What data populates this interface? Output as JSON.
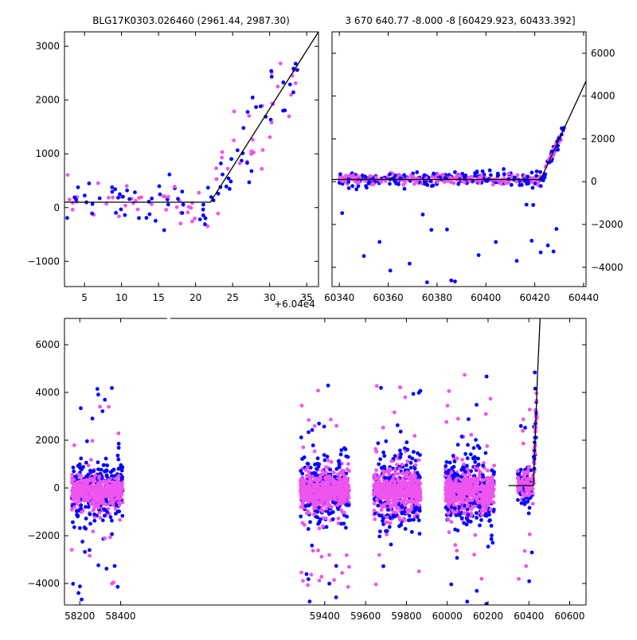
{
  "chart_data": [
    {
      "type": "scatter",
      "title": "BLG17K0303.026460 (2961.44, 2987.30)",
      "xlabel": "",
      "ylabel": "",
      "x_offset_label": "+6.04e4",
      "xlim": [
        2.3,
        36.6
      ],
      "ylim": [
        -1470,
        3270
      ],
      "x_ticks": [
        5,
        10,
        15,
        20,
        25,
        30,
        35
      ],
      "x_tick_labels": [
        "5",
        "10",
        "15",
        "20",
        "25",
        "30",
        "35"
      ],
      "y_ticks": [
        -1000,
        0,
        1000,
        2000,
        3000
      ],
      "y_tick_labels": [
        "−1000",
        "0",
        "1000",
        "2000",
        "3000"
      ],
      "grid": false,
      "model": {
        "x": [
          2.3,
          22.0,
          36.6
        ],
        "y": [
          100,
          100,
          3270
        ]
      },
      "colors": {
        "series_a": "#0000ff",
        "series_b": "#ee55ee",
        "model": "#000000"
      }
    },
    {
      "type": "scatter",
      "title": "3 670 640.77 -8.000 -8 [60429.923, 60433.392]",
      "xlabel": "",
      "ylabel": "",
      "xlim": [
        60337,
        60441
      ],
      "ylim": [
        -4900,
        7000
      ],
      "x_ticks": [
        60340,
        60360,
        60380,
        60400,
        60420,
        60440
      ],
      "x_tick_labels": [
        "60340",
        "60360",
        "60380",
        "60400",
        "60420",
        "60440"
      ],
      "y_ticks": [
        -4000,
        -2000,
        0,
        2000,
        4000,
        6000
      ],
      "y_tick_labels": [
        "−4000",
        "−2000",
        "0",
        "2000",
        "4000",
        "6000"
      ],
      "y_axis_side": "right",
      "grid": false,
      "model": {
        "x": [
          60337,
          60422.4,
          60441
        ],
        "y": [
          100,
          100,
          4700
        ]
      },
      "colors": {
        "series_a": "#0000ff",
        "series_b": "#ee55ee",
        "model": "#000000"
      }
    },
    {
      "type": "scatter",
      "title": "",
      "xlabel": "",
      "ylabel": "",
      "xlim": [
        58125,
        60680
      ],
      "ylim": [
        -4900,
        7100
      ],
      "x_ticks": [
        58200,
        58400,
        59400,
        59600,
        59800,
        60000,
        60200,
        60400,
        60600
      ],
      "x_tick_labels": [
        "58200",
        "58400",
        "59400",
        "59600",
        "59800",
        "60000",
        "60200",
        "60400",
        "60600"
      ],
      "y_ticks": [
        -4000,
        -2000,
        0,
        2000,
        4000,
        6000
      ],
      "y_tick_labels": [
        "−4000",
        "−2000",
        "0",
        "2000",
        "4000",
        "6000"
      ],
      "broken_x_axis": true,
      "seasons": [
        {
          "x_range": [
            58160,
            58410
          ],
          "spread": 420
        },
        {
          "x_range": [
            59280,
            59520
          ],
          "spread": 520
        },
        {
          "x_range": [
            59640,
            59870
          ],
          "spread": 560
        },
        {
          "x_range": [
            59990,
            60230
          ],
          "spread": 540
        },
        {
          "x_range": [
            60345,
            60440
          ],
          "spread": 300
        }
      ],
      "grid": false,
      "model": {
        "x": [
          60300,
          60422.4,
          60442,
          60455
        ],
        "y": [
          100,
          100,
          4700,
          7100
        ]
      },
      "colors": {
        "series_a": "#0000ff",
        "series_b": "#ee55ee",
        "model": "#000000"
      }
    }
  ]
}
